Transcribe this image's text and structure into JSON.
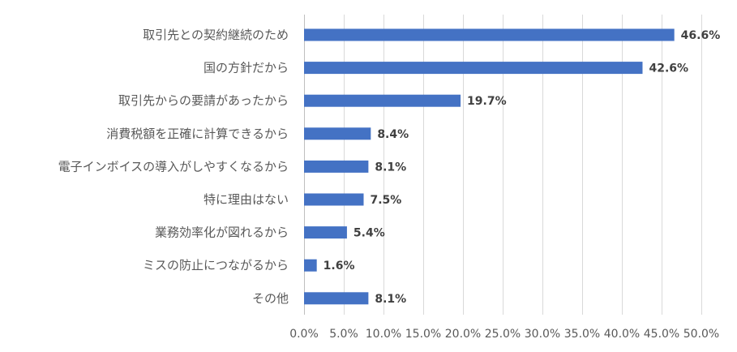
{
  "chart_data": {
    "type": "bar",
    "orientation": "horizontal",
    "title": "",
    "xlabel": "",
    "ylabel": "",
    "categories": [
      "取引先との契約継続のため",
      "国の方針だから",
      "取引先からの要請があったから",
      "消費税額を正確に計算できるから",
      "電子インボイスの導入がしやすくなるから",
      "特に理由はない",
      "業務効率化が図れるから",
      "ミスの防止につながるから",
      "その他"
    ],
    "values": [
      46.6,
      42.6,
      19.7,
      8.4,
      8.1,
      7.5,
      5.4,
      1.6,
      8.1
    ],
    "data_labels": [
      "46.6%",
      "42.6%",
      "19.7%",
      "8.4%",
      "8.1%",
      "7.5%",
      "5.4%",
      "1.6%",
      "8.1%"
    ],
    "xlim": [
      0,
      50
    ],
    "x_ticks": [
      0,
      5,
      10,
      15,
      20,
      25,
      30,
      35,
      40,
      45,
      50
    ],
    "x_tick_labels": [
      "0.0%",
      "5.0%",
      "10.0%",
      "15.0%",
      "20.0%",
      "25.0%",
      "30.0%",
      "35.0%",
      "40.0%",
      "45.0%",
      "50.0%"
    ],
    "grid": true,
    "legend": "none",
    "bar_color": "#4472c4"
  }
}
